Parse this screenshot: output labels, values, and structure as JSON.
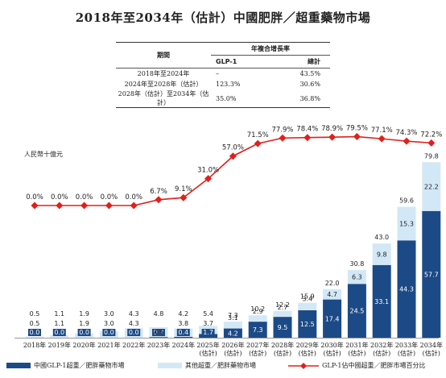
{
  "title": "2018年至2034年（估計）中國肥胖／超重藥物市場",
  "table": {
    "header_period": "期間",
    "header_cagr": "年複合增長率",
    "col_glp": "GLP-1",
    "col_total": "總計",
    "rows": [
      {
        "period": "2018年至2024年",
        "glp": "–",
        "total": "43.5%"
      },
      {
        "period": "2024年至2028年（估計）",
        "glp": "123.3%",
        "total": "30.6%"
      },
      {
        "period": "2028年（估計）至2034年（估計）",
        "glp": "35.0%",
        "total": "36.8%"
      }
    ]
  },
  "y_unit": "人民幣十億元",
  "legend": {
    "glp": "中國GLP-1超重／肥胖藥物市場",
    "other": "其他超重／肥胖藥物市場",
    "share": "GLP-1佔中國超重／肥胖市場百分比"
  },
  "colors": {
    "glp": "#1c4a86",
    "other": "#d3e8f6",
    "line": "#e0201b"
  },
  "chart_data": {
    "type": "bar",
    "stacked": true,
    "categories": [
      [
        "2018年"
      ],
      [
        "2019年"
      ],
      [
        "2020年"
      ],
      [
        "2021年"
      ],
      [
        "2022年"
      ],
      [
        "2023年"
      ],
      [
        "2024年"
      ],
      [
        "2025年",
        "(估計)"
      ],
      [
        "2026年",
        "(估計)"
      ],
      [
        "2027年",
        "(估計)"
      ],
      [
        "2028年",
        "(估計)"
      ],
      [
        "2029年",
        "(估計)"
      ],
      [
        "2030年",
        "(估計)"
      ],
      [
        "2031年",
        "(估計)"
      ],
      [
        "2032年",
        "(估計)"
      ],
      [
        "2033年",
        "(估計)"
      ],
      [
        "2034年",
        "(估計)"
      ]
    ],
    "totals": [
      "0.5",
      "1.1",
      "1.9",
      "3.0",
      "4.3",
      "4.8",
      "4.2",
      "5.4",
      "7.3",
      "10.2",
      "12.2",
      "15.9",
      "22.0",
      "30.8",
      "43.0",
      "59.6",
      "79.8"
    ],
    "series": [
      {
        "name": "中國GLP-1超重／肥胖藥物市場",
        "values": [
          0.0,
          0.0,
          0.0,
          0.0,
          0.0,
          0.3,
          0.4,
          1.7,
          4.2,
          7.3,
          9.5,
          12.5,
          17.4,
          24.5,
          33.1,
          44.3,
          57.7
        ],
        "labels": [
          "0.0",
          "0.0",
          "0.0",
          "0.0",
          "0.0",
          "0.3",
          "0.4",
          "1.7",
          "4.2",
          "7.3",
          "9.5",
          "12.5",
          "17.4",
          "24.5",
          "33.1",
          "44.3",
          "57.7"
        ]
      },
      {
        "name": "其他超重／肥胖藥物市場",
        "values": [
          0.5,
          1.1,
          1.9,
          3.0,
          4.3,
          4.5,
          3.8,
          3.7,
          3.1,
          2.9,
          2.7,
          3.4,
          4.7,
          6.3,
          9.8,
          15.3,
          22.2
        ],
        "labels": [
          "0.5",
          "1.1",
          "1.9",
          "3.0",
          "4.3",
          "4.5",
          "3.8",
          "3.7",
          "3.1",
          "2.9",
          "2.7",
          "3.4",
          "4.7",
          "6.3",
          "9.8",
          "15.3",
          "22.2"
        ]
      }
    ],
    "line_series": {
      "name": "GLP-1佔中國超重／肥胖市場百分比",
      "values": [
        0.0,
        0.0,
        0.0,
        0.0,
        0.0,
        6.7,
        9.1,
        31.0,
        57.0,
        71.5,
        77.9,
        78.4,
        78.9,
        79.5,
        77.1,
        74.3,
        72.2
      ],
      "labels": [
        "0.0%",
        "0.0%",
        "0.0%",
        "0.0%",
        "0.0%",
        "6.7%",
        "9.1%",
        "31.0%",
        "57.0%",
        "71.5%",
        "77.9%",
        "78.4%",
        "78.9%",
        "79.5%",
        "77.1%",
        "74.3%",
        "72.2%"
      ]
    },
    "ylim": [
      0,
      80
    ],
    "grid": false,
    "legend_position": "bottom"
  }
}
